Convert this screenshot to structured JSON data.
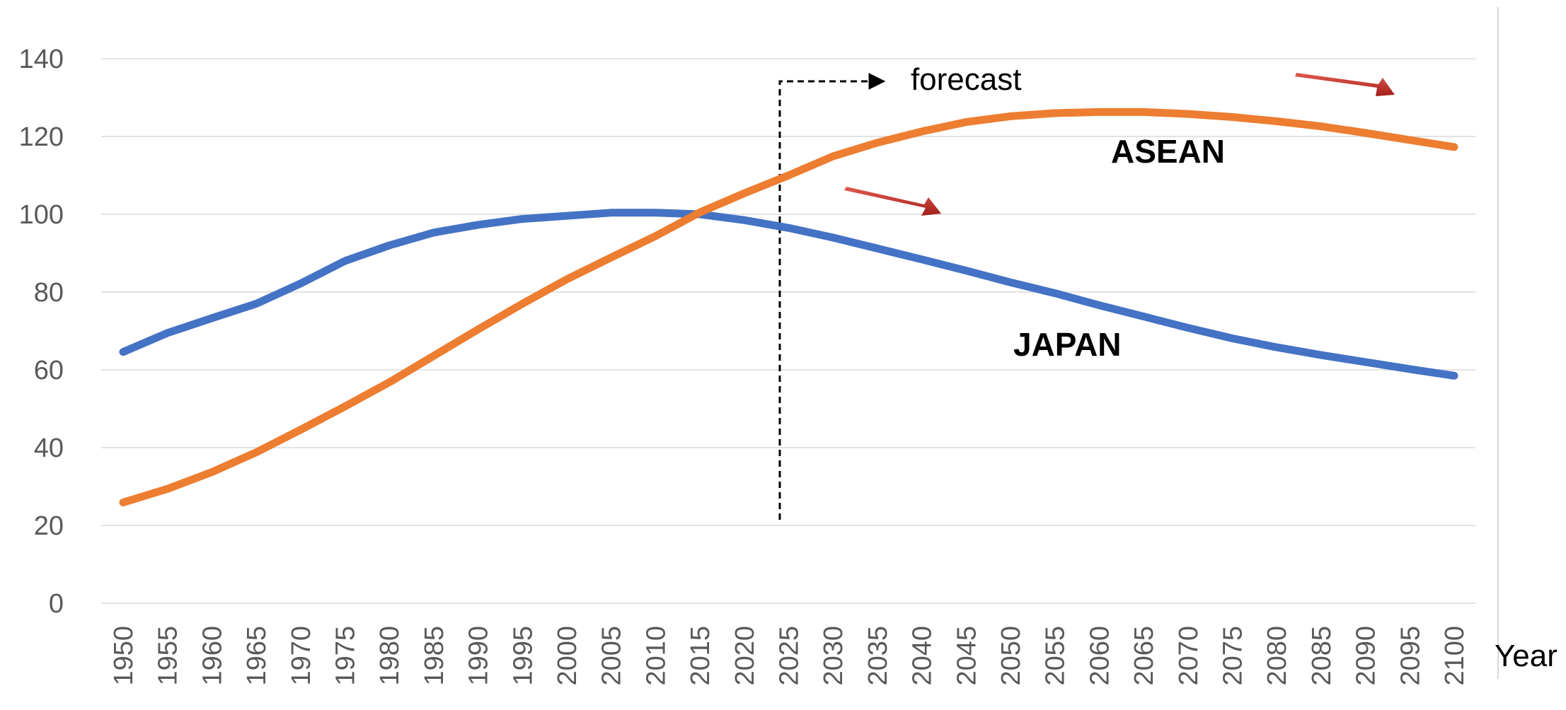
{
  "chart_data": {
    "type": "line",
    "title": "",
    "xlabel": "Year",
    "ylabel": "",
    "ylim": [
      0,
      140
    ],
    "yticks": [
      0,
      20,
      40,
      60,
      80,
      100,
      120,
      140
    ],
    "x": [
      1950,
      1955,
      1960,
      1965,
      1970,
      1975,
      1980,
      1985,
      1990,
      1995,
      2000,
      2005,
      2010,
      2015,
      2020,
      2025,
      2030,
      2035,
      2040,
      2045,
      2050,
      2055,
      2060,
      2065,
      2070,
      2075,
      2080,
      2085,
      2090,
      2095,
      2100
    ],
    "grid": true,
    "legend": "none",
    "series": [
      {
        "name": "JAPAN",
        "color": "#4472C4",
        "values": [
          64.6,
          69.5,
          73.3,
          77.0,
          82.2,
          88.0,
          92.0,
          95.3,
          97.3,
          98.8,
          99.6,
          100.4,
          100.4,
          100.0,
          98.5,
          96.5,
          94.0,
          91.2,
          88.4,
          85.5,
          82.5,
          79.7,
          76.6,
          73.7,
          70.8,
          68.1,
          65.8,
          63.8,
          62.0,
          60.2,
          58.5
        ]
      },
      {
        "name": "ASEAN",
        "color": "#ED7D31",
        "values": [
          25.9,
          29.4,
          33.7,
          38.8,
          44.6,
          50.6,
          56.8,
          63.6,
          70.4,
          77.0,
          83.3,
          88.9,
          94.4,
          100.5,
          105.4,
          110.0,
          114.9,
          118.4,
          121.3,
          123.7,
          125.2,
          126.0,
          126.3,
          126.3,
          125.8,
          125.0,
          123.9,
          122.6,
          120.9,
          119.1,
          117.3
        ]
      }
    ],
    "annotations": {
      "forecast_label": "forecast",
      "forecast_start_year": 2024
    },
    "arrow_color": "#C0392B"
  }
}
